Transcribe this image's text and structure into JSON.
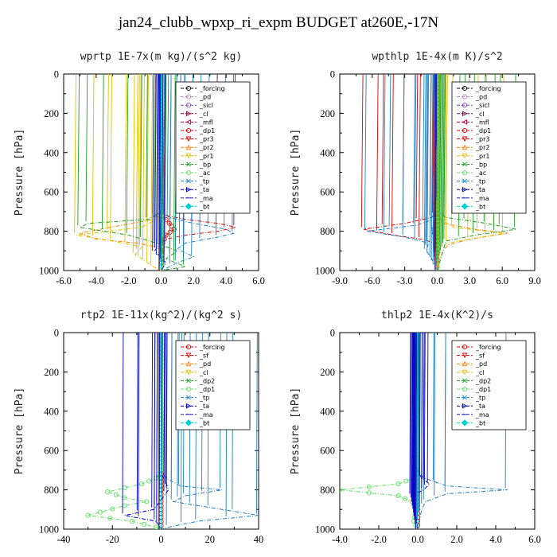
{
  "title": "jan24_clubb_wpxp_ri_expm  BUDGET at260E,-17N",
  "chart_data": [
    {
      "type": "line",
      "title": "wprtp  1E-7x(m kg)/(s^2 kg)",
      "ylabel": "Pressure [hPa]",
      "xlim": [
        -6,
        6
      ],
      "ylim": [
        1000,
        0
      ],
      "xticks": [
        "-6.0",
        "-4.0",
        "-2.0",
        "0.0",
        "2.0",
        "4.0",
        "6.0"
      ],
      "yticks": [
        "0",
        "200",
        "400",
        "600",
        "800",
        "1000"
      ],
      "legend_position": "top-right",
      "legend": [
        "_forcing",
        "_pd",
        "_sicl",
        "_cl",
        "_mfl",
        "_dp1",
        "_pr3",
        "_pr2",
        "_pr1",
        "_bp",
        "_ac",
        "_tp",
        "_ta",
        "_ma",
        "_bt"
      ],
      "series": [
        {
          "name": "_forcing",
          "color": "#000000",
          "marker": "o",
          "x": [
            0,
            0
          ],
          "y": [
            0,
            1000
          ]
        },
        {
          "name": "_pd",
          "color": "#c080c0",
          "marker": "o",
          "x": [
            0,
            0
          ],
          "y": [
            0,
            1000
          ]
        },
        {
          "name": "_sicl",
          "color": "#8040c0",
          "marker": "o",
          "x": [
            0,
            0
          ],
          "y": [
            0,
            1000
          ]
        },
        {
          "name": "_cl",
          "color": "#800040",
          "marker": ">",
          "x": [
            0,
            0
          ],
          "y": [
            0,
            1000
          ]
        },
        {
          "name": "_mfl",
          "color": "#c00040",
          "marker": "<",
          "x": [
            0,
            0
          ],
          "y": [
            0,
            1000
          ]
        },
        {
          "name": "_dp1",
          "color": "#e00000",
          "marker": "o",
          "x": [
            0,
            0,
            0,
            0.1,
            0.3,
            0.5,
            0.8,
            0.3,
            0.1,
            0
          ],
          "y": [
            0,
            650,
            700,
            720,
            740,
            760,
            790,
            820,
            860,
            1000
          ]
        },
        {
          "name": "_pr3",
          "color": "#e00000",
          "marker": "v",
          "x": [
            0,
            0,
            0.3,
            1.5,
            3.5,
            4.6,
            3.5,
            1.5,
            0.3,
            0,
            0
          ],
          "y": [
            0,
            680,
            720,
            740,
            760,
            780,
            800,
            820,
            840,
            860,
            1000
          ]
        },
        {
          "name": "_pr2",
          "color": "#ff8000",
          "marker": "^",
          "x": [
            0,
            0,
            -0.5,
            -2.5,
            -5.0,
            -4.0,
            -1.5,
            -0.3,
            0,
            0
          ],
          "y": [
            0,
            700,
            740,
            770,
            810,
            840,
            860,
            880,
            900,
            1000
          ]
        },
        {
          "name": "_pr1",
          "color": "#e0c000",
          "marker": "v",
          "x": [
            0,
            0,
            -0.3,
            -1.2,
            -5.2,
            -3.0,
            -1.2,
            -1.6,
            -1.0,
            -0.5,
            0
          ],
          "y": [
            0,
            700,
            740,
            780,
            820,
            850,
            880,
            920,
            950,
            980,
            1000
          ]
        },
        {
          "name": "_bp",
          "color": "#20a020",
          "marker": "x",
          "x": [
            0,
            0,
            -0.8,
            -4.5,
            -5.0,
            -2.0,
            -0.3,
            1.0,
            0.3,
            1.5,
            0
          ],
          "y": [
            0,
            700,
            740,
            760,
            780,
            820,
            860,
            900,
            940,
            980,
            1000
          ]
        },
        {
          "name": "_ac",
          "color": "#60e060",
          "marker": "o",
          "x": [
            0,
            0,
            0,
            0
          ],
          "y": [
            0,
            700,
            1000,
            1000
          ]
        },
        {
          "name": "_tp",
          "color": "#2080c0",
          "marker": "x",
          "x": [
            0,
            0,
            0.5,
            2.0,
            4.0,
            4.5,
            3.5,
            1.5,
            1.0,
            2.0,
            1.0,
            0.3,
            0
          ],
          "y": [
            0,
            700,
            730,
            760,
            790,
            810,
            830,
            860,
            890,
            930,
            960,
            990,
            1000
          ]
        },
        {
          "name": "_ta",
          "color": "#0000c0",
          "marker": ">",
          "x": [
            0,
            0,
            0,
            0
          ],
          "y": [
            0,
            700,
            1000,
            1000
          ]
        },
        {
          "name": "_ma",
          "color": "#2020c0",
          "marker": "-",
          "x": [
            0,
            0,
            -0.4,
            0.3,
            0
          ],
          "y": [
            0,
            850,
            900,
            960,
            1000
          ]
        },
        {
          "name": "_bt",
          "color": "#00d0d0",
          "marker": "diamond",
          "x": [
            0,
            0
          ],
          "y": [
            0,
            1000
          ]
        }
      ]
    },
    {
      "type": "line",
      "title": "wpthlp  1E-4x(m K)/s^2",
      "ylabel": "Pressure [hPa]",
      "xlim": [
        -9,
        9
      ],
      "ylim": [
        1000,
        0
      ],
      "xticks": [
        "-9.0",
        "-6.0",
        "-3.0",
        "0.0",
        "3.0",
        "6.0",
        "9.0"
      ],
      "yticks": [
        "0",
        "200",
        "400",
        "600",
        "800",
        "1000"
      ],
      "legend_position": "top-right",
      "legend": [
        "_forcing",
        "_pd",
        "_sicl",
        "_cl",
        "_mfl",
        "_dp1",
        "_pr3",
        "_pr2",
        "_pr1",
        "_bp",
        "_ac",
        "_tp",
        "_ta",
        "_ma",
        "_bt"
      ],
      "series": [
        {
          "name": "_forcing",
          "color": "#000000",
          "marker": "o",
          "x": [
            0,
            0
          ],
          "y": [
            0,
            1000
          ]
        },
        {
          "name": "_pd",
          "color": "#c080c0",
          "marker": "o",
          "x": [
            0,
            0
          ],
          "y": [
            0,
            1000
          ]
        },
        {
          "name": "_sicl",
          "color": "#8040c0",
          "marker": "o",
          "x": [
            0,
            0
          ],
          "y": [
            0,
            1000
          ]
        },
        {
          "name": "_cl",
          "color": "#800040",
          "marker": ">",
          "x": [
            0,
            0
          ],
          "y": [
            0,
            1000
          ]
        },
        {
          "name": "_mfl",
          "color": "#c00040",
          "marker": "<",
          "x": [
            0,
            0
          ],
          "y": [
            0,
            1000
          ]
        },
        {
          "name": "_dp1",
          "color": "#e00000",
          "marker": "o",
          "x": [
            0,
            0,
            0,
            -0.3,
            -0.2,
            0
          ],
          "y": [
            0,
            700,
            740,
            790,
            830,
            1000
          ]
        },
        {
          "name": "_pr3",
          "color": "#e00000",
          "marker": "v",
          "x": [
            0,
            0,
            -0.5,
            -3.0,
            -6.8,
            -4.0,
            -1.5,
            -0.2,
            0
          ],
          "y": [
            0,
            700,
            730,
            760,
            790,
            820,
            840,
            860,
            1000
          ]
        },
        {
          "name": "_pr2",
          "color": "#ff8000",
          "marker": "^",
          "x": [
            0,
            0,
            0.5,
            3.5,
            6.5,
            3.0,
            1.0,
            0.5,
            0
          ],
          "y": [
            0,
            720,
            760,
            790,
            810,
            840,
            870,
            900,
            1000
          ]
        },
        {
          "name": "_pr1",
          "color": "#e0c000",
          "marker": "v",
          "x": [
            0,
            0,
            0.3,
            1.5,
            6.2,
            3.0,
            1.0,
            0.3,
            0
          ],
          "y": [
            0,
            700,
            740,
            780,
            810,
            840,
            860,
            880,
            1000
          ]
        },
        {
          "name": "_bp",
          "color": "#20a020",
          "marker": "x",
          "x": [
            0,
            0,
            0.8,
            4.5,
            7.3,
            3.5,
            0.8,
            0
          ],
          "y": [
            0,
            700,
            730,
            760,
            790,
            820,
            850,
            1000
          ]
        },
        {
          "name": "_ac",
          "color": "#60e060",
          "marker": "o",
          "x": [
            0,
            0,
            0,
            0
          ],
          "y": [
            0,
            700,
            1000,
            1000
          ]
        },
        {
          "name": "_tp",
          "color": "#2080c0",
          "marker": "x",
          "x": [
            0,
            0,
            -0.3,
            -2.0,
            -6.5,
            -3.0,
            -0.8,
            -1.0,
            -0.5,
            -0.2,
            0
          ],
          "y": [
            0,
            700,
            740,
            770,
            800,
            830,
            860,
            900,
            940,
            980,
            1000
          ]
        },
        {
          "name": "_ta",
          "color": "#0000c0",
          "marker": ">",
          "x": [
            0,
            0,
            0,
            0
          ],
          "y": [
            0,
            700,
            1000,
            1000
          ]
        },
        {
          "name": "_ma",
          "color": "#2020c0",
          "marker": "-",
          "x": [
            0,
            0,
            0
          ],
          "y": [
            0,
            700,
            1000
          ]
        },
        {
          "name": "_bt",
          "color": "#00d0d0",
          "marker": "diamond",
          "x": [
            0,
            0
          ],
          "y": [
            0,
            1000
          ]
        }
      ]
    },
    {
      "type": "line",
      "title": "rtp2  1E-11x(kg^2)/(kg^2 s)",
      "ylabel": "Pressure [hPa]",
      "xlim": [
        -40,
        40
      ],
      "ylim": [
        1000,
        0
      ],
      "xticks": [
        "-40",
        "-20",
        "0",
        "20",
        "40"
      ],
      "yticks": [
        "0",
        "200",
        "400",
        "600",
        "800",
        "1000"
      ],
      "legend_position": "top-right",
      "legend": [
        "_forcing",
        "_sf",
        "_pd",
        "_cl",
        "_dp2",
        "_dp1",
        "_tp",
        "_ta",
        "_ma",
        "_bt"
      ],
      "series": [
        {
          "name": "_forcing",
          "color": "#e00000",
          "marker": "o",
          "x": [
            0,
            0
          ],
          "y": [
            0,
            1000
          ]
        },
        {
          "name": "_sf",
          "color": "#e00000",
          "marker": "v",
          "x": [
            0,
            0
          ],
          "y": [
            0,
            1000
          ]
        },
        {
          "name": "_pd",
          "color": "#ff8000",
          "marker": "^",
          "x": [
            0,
            0
          ],
          "y": [
            0,
            1000
          ]
        },
        {
          "name": "_cl",
          "color": "#e0c000",
          "marker": "v",
          "x": [
            0,
            0
          ],
          "y": [
            0,
            1000
          ]
        },
        {
          "name": "_dp2",
          "color": "#20a020",
          "marker": "x",
          "x": [
            0,
            0,
            0,
            0
          ],
          "y": [
            0,
            700,
            1000,
            1000
          ]
        },
        {
          "name": "_dp1",
          "color": "#60e060",
          "marker": "o",
          "x": [
            0,
            0,
            -2,
            -8,
            -22,
            -15,
            -6,
            -15,
            -30,
            -12,
            -2,
            0
          ],
          "y": [
            0,
            700,
            740,
            770,
            810,
            840,
            860,
            880,
            930,
            960,
            990,
            1000
          ]
        },
        {
          "name": "_tp",
          "color": "#2080c0",
          "marker": "x",
          "x": [
            0,
            0,
            2,
            8,
            25,
            10,
            5,
            20,
            40,
            15,
            3,
            0
          ],
          "y": [
            0,
            700,
            740,
            780,
            800,
            830,
            860,
            890,
            930,
            960,
            990,
            1000
          ]
        },
        {
          "name": "_ta",
          "color": "#0000c0",
          "marker": ">",
          "x": [
            0,
            0,
            2,
            3,
            0,
            -3,
            -15,
            -2,
            0
          ],
          "y": [
            0,
            720,
            760,
            800,
            850,
            900,
            930,
            960,
            1000
          ]
        },
        {
          "name": "_ma",
          "color": "#2020c0",
          "marker": "-",
          "x": [
            0,
            0,
            0
          ],
          "y": [
            0,
            700,
            1000
          ]
        },
        {
          "name": "_bt",
          "color": "#00d0d0",
          "marker": "diamond",
          "x": [
            0,
            0
          ],
          "y": [
            0,
            1000
          ]
        }
      ]
    },
    {
      "type": "line",
      "title": "thlp2  1E-4x(K^2)/s",
      "ylabel": "Pressure [hPa]",
      "xlim": [
        -4,
        6
      ],
      "ylim": [
        1000,
        0
      ],
      "xticks": [
        "-4.0",
        "-2.0",
        "0.0",
        "2.0",
        "4.0",
        "6.0"
      ],
      "yticks": [
        "0",
        "200",
        "400",
        "600",
        "800",
        "1000"
      ],
      "legend_position": "top-right",
      "legend": [
        "_forcing",
        "_sf",
        "_pd",
        "_cl",
        "_dp2",
        "_dp1",
        "_tp",
        "_ta",
        "_ma",
        "_bt"
      ],
      "series": [
        {
          "name": "_forcing",
          "color": "#e00000",
          "marker": "o",
          "x": [
            0,
            0
          ],
          "y": [
            0,
            1000
          ]
        },
        {
          "name": "_sf",
          "color": "#e00000",
          "marker": "v",
          "x": [
            0,
            0
          ],
          "y": [
            0,
            1000
          ]
        },
        {
          "name": "_pd",
          "color": "#ff8000",
          "marker": "^",
          "x": [
            0,
            0
          ],
          "y": [
            0,
            1000
          ]
        },
        {
          "name": "_cl",
          "color": "#e0c000",
          "marker": "v",
          "x": [
            0,
            0
          ],
          "y": [
            0,
            1000
          ]
        },
        {
          "name": "_dp2",
          "color": "#20a020",
          "marker": "x",
          "x": [
            0,
            0,
            0,
            0
          ],
          "y": [
            0,
            700,
            1000,
            1000
          ]
        },
        {
          "name": "_dp1",
          "color": "#60e060",
          "marker": "o",
          "x": [
            0,
            0,
            -0.2,
            -1.0,
            -4.0,
            -1.0,
            -0.3,
            -0.1,
            -0.2,
            0
          ],
          "y": [
            0,
            700,
            740,
            770,
            800,
            830,
            860,
            900,
            960,
            1000
          ]
        },
        {
          "name": "_tp",
          "color": "#2080c0",
          "marker": "x",
          "x": [
            0,
            0,
            0.3,
            1.5,
            4.6,
            1.5,
            0.4,
            0.2,
            0
          ],
          "y": [
            0,
            700,
            740,
            780,
            800,
            820,
            860,
            900,
            1000
          ]
        },
        {
          "name": "_ta",
          "color": "#0000c0",
          "marker": ">",
          "x": [
            0,
            0,
            0.2,
            0.6,
            0.3,
            -0.3,
            -0.2,
            0
          ],
          "y": [
            0,
            700,
            740,
            770,
            800,
            830,
            870,
            1000
          ]
        },
        {
          "name": "_ma",
          "color": "#2020c0",
          "marker": "-",
          "x": [
            0,
            0,
            0
          ],
          "y": [
            0,
            700,
            1000
          ]
        },
        {
          "name": "_bt",
          "color": "#00d0d0",
          "marker": "diamond",
          "x": [
            0,
            0
          ],
          "y": [
            0,
            1000
          ]
        }
      ]
    }
  ]
}
